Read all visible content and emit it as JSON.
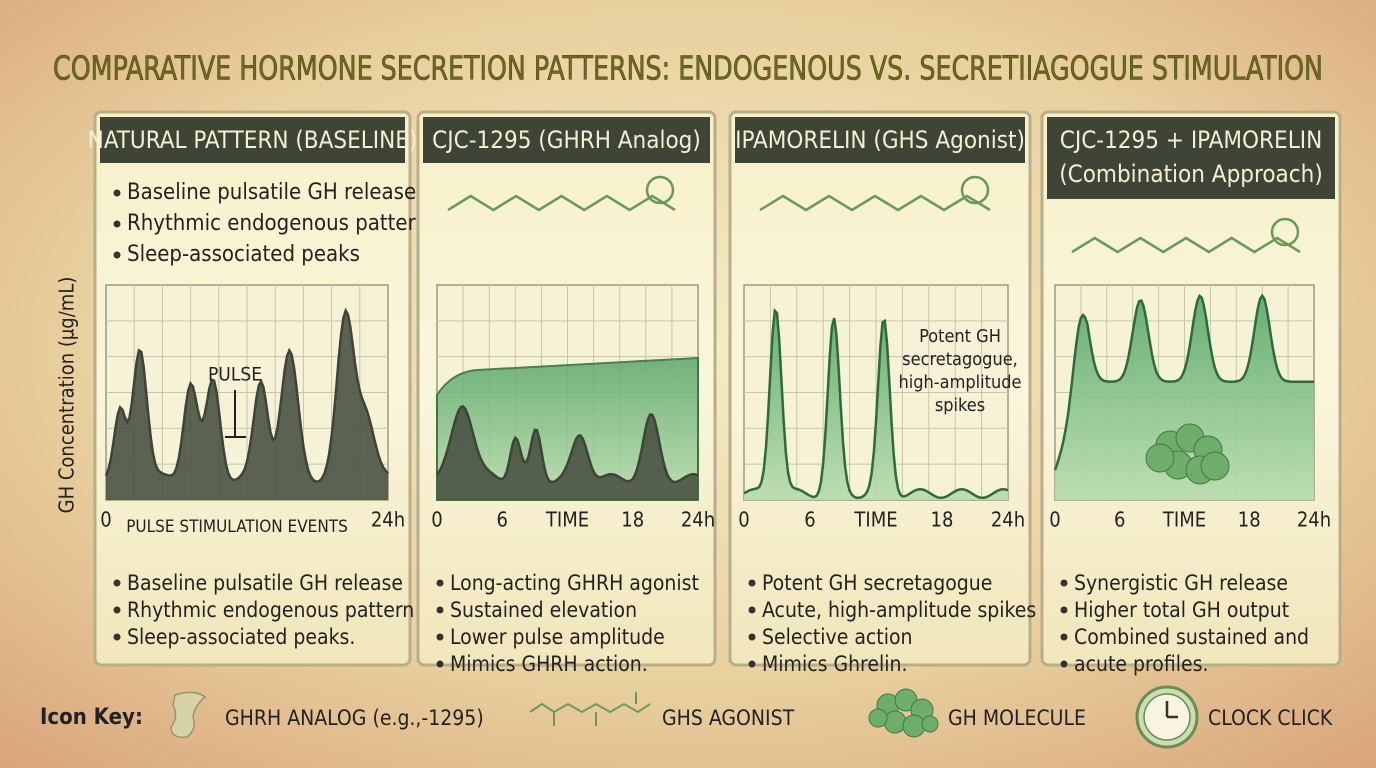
{
  "title": "COMPARATIVE HORMONE SECRETION PATTERNS: ENDOGENOUS VS. SECRETIIAGOGUE STIMULATION",
  "y_axis_label": "GH Concentration (µg/mL)",
  "panels": [
    {
      "header": [
        "NATURAL PATTERN (BASELINE)"
      ],
      "top_bullets": [
        "Baseline pulsatile GH release",
        "Rhythmic endogenous pattern",
        "Sleep-associated peaks"
      ],
      "annotation": [
        "PULSE"
      ],
      "x_ticks": [
        "0",
        "24h"
      ],
      "x_label": "PULSE STIMULATION EVENTS",
      "bottom_bullets": [
        "Baseline pulsatile GH release",
        "Rhythmic endogenous pattern",
        "Sleep-associated peaks."
      ]
    },
    {
      "header": [
        "CJC-1295 (GHRH Analog)"
      ],
      "top_bullets": [],
      "annotation": [],
      "x_ticks": [
        "0",
        "6",
        "TIME",
        "18",
        "24h"
      ],
      "bottom_bullets": [
        "Long-acting GHRH agonist",
        "Sustained elevation",
        "Lower pulse amplitude",
        "Mimics GHRH action."
      ]
    },
    {
      "header": [
        "IPAMORELIN (GHS Agonist)"
      ],
      "top_bullets": [],
      "annotation": [
        "Potent GH",
        "secretagogue,",
        "high-amplitude",
        "spikes"
      ],
      "x_ticks": [
        "0",
        "6",
        "TIME",
        "18",
        "24h"
      ],
      "bottom_bullets": [
        "Potent GH secretagogue",
        "Acute, high-amplitude spikes",
        "Selective action",
        "Mimics Ghrelin."
      ]
    },
    {
      "header": [
        "CJC-1295 + IPAMORELIN",
        "(Combination Approach)"
      ],
      "top_bullets": [],
      "annotation": [],
      "x_ticks": [
        "0",
        "6",
        "TIME",
        "18",
        "24h"
      ],
      "bottom_bullets": [
        "Synergistic GH release",
        "Higher total GH output",
        "Combined sustained and",
        "acute profiles."
      ]
    }
  ],
  "icon_key": {
    "label": "Icon Key:",
    "items": [
      "GHRH ANALOG (e.g.,-1295)",
      "GHS AGONIST",
      "GH MOLECULE",
      "CLOCK CLICK"
    ]
  }
}
